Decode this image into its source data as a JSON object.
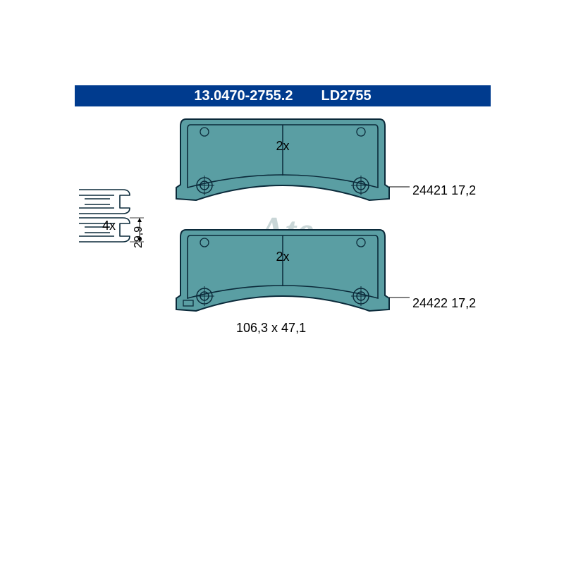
{
  "header": {
    "bg_color": "#003b8e",
    "text_color": "#ffffff",
    "part_no": "13.0470-2755.2",
    "code": "LD2755",
    "fontsize": 20
  },
  "colors": {
    "pad_fill": "#5a9ea3",
    "pad_stroke": "#0b2a3a",
    "clip_stroke": "#0b2a3a",
    "dim_color": "#000000",
    "watermark": "#c9d6d7"
  },
  "clip": {
    "qty_label": "4x",
    "height_label": "29,9"
  },
  "pads": {
    "top": {
      "qty_label": "2x",
      "ref": "24421",
      "thickness": "17,2"
    },
    "bottom": {
      "qty_label": "2x",
      "ref": "24422",
      "thickness": "17,2",
      "dim_label": "106,3 x 47,1"
    }
  },
  "watermark_text": "Ate"
}
